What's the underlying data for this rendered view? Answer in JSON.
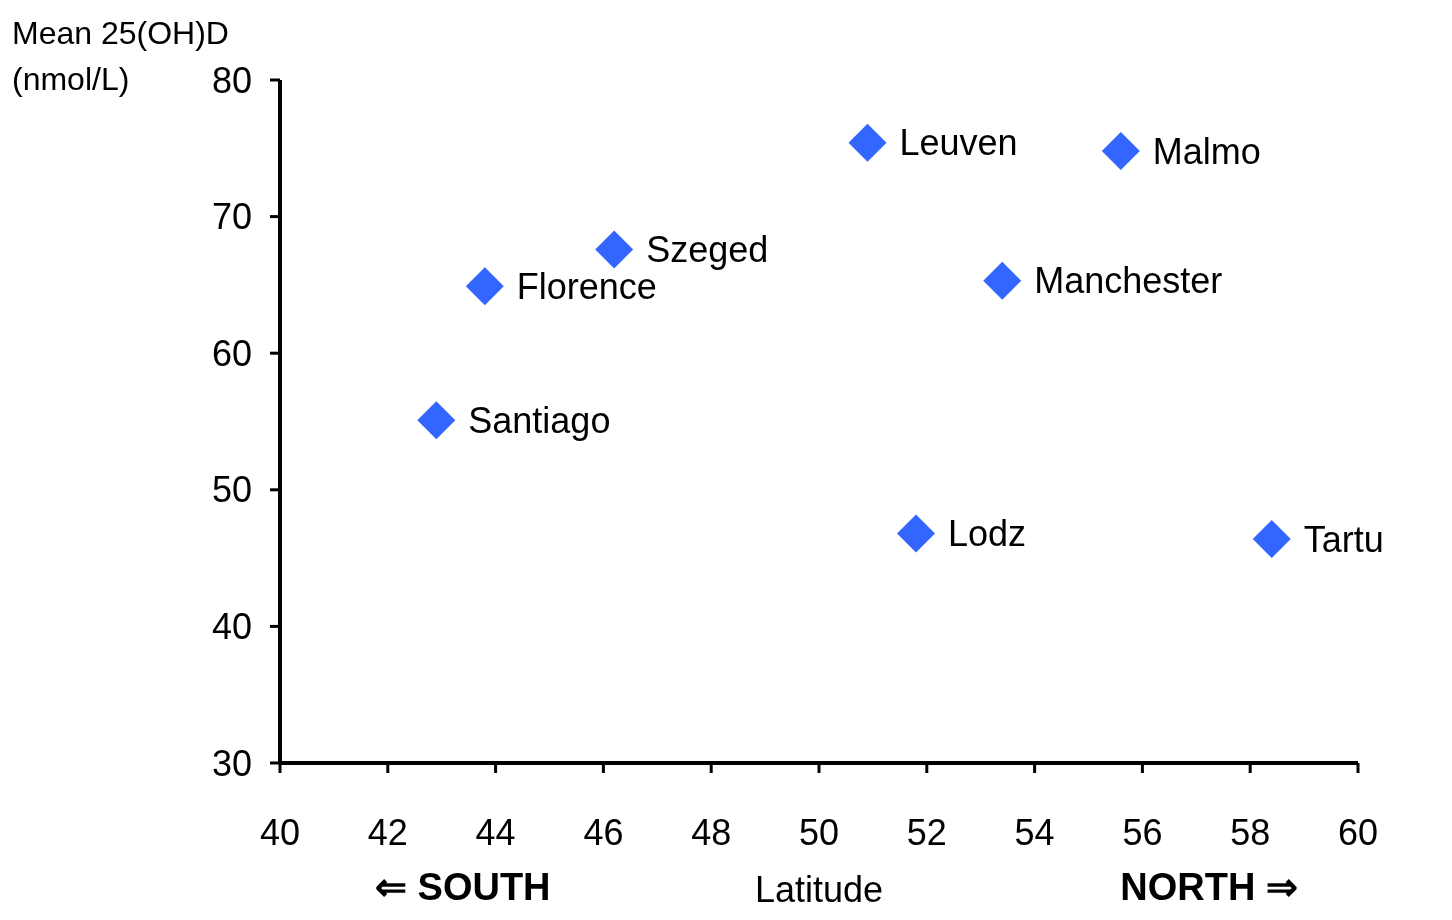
{
  "chart_data": {
    "type": "scatter",
    "xlabel": "Latitude",
    "ylabel": "Mean 25(OH)D (nmol/L)",
    "x": [
      42.9,
      43.8,
      46.2,
      50.9,
      51.8,
      53.4,
      55.6,
      58.4
    ],
    "series": [
      {
        "color": "#3366ff",
        "values": [
          55.1,
          64.9,
          67.6,
          75.4,
          46.8,
          65.3,
          74.8,
          46.4
        ]
      }
    ],
    "xlim": [
      40,
      60
    ],
    "xticks": [
      40,
      42,
      44,
      46,
      48,
      50,
      52,
      54,
      56,
      58,
      60
    ],
    "ylim": [
      30,
      80
    ],
    "yticks": [
      30,
      40,
      50,
      60,
      70,
      80
    ],
    "grid": false,
    "marker": "diamond",
    "annotations": [
      "⇐ SOUTH",
      "NORTH ⇒",
      {
        "text": "Santiago",
        "x": 42.9,
        "y": 55.1
      },
      {
        "text": "Florence",
        "x": 43.8,
        "y": 64.9
      },
      {
        "text": "Szeged",
        "x": 46.2,
        "y": 67.6
      },
      {
        "text": "Leuven",
        "x": 50.9,
        "y": 75.4
      },
      {
        "text": "Lodz",
        "x": 51.8,
        "y": 46.8
      },
      {
        "text": "Manchester",
        "x": 53.4,
        "y": 65.3
      },
      {
        "text": "Malmo",
        "x": 55.6,
        "y": 74.8
      },
      {
        "text": "Tartu",
        "x": 58.4,
        "y": 46.4
      }
    ]
  }
}
